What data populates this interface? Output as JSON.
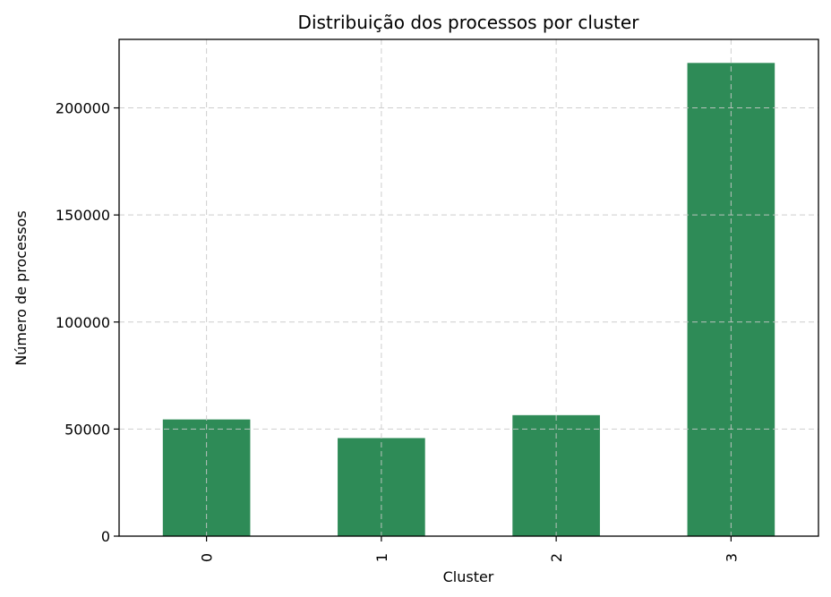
{
  "chart_data": {
    "type": "bar",
    "title": "Distribuição dos processos por cluster",
    "xlabel": "Cluster",
    "ylabel": "Número de processos",
    "categories": [
      "0",
      "1",
      "2",
      "3"
    ],
    "values": [
      54500,
      45800,
      56500,
      221000
    ],
    "ylim": [
      0,
      232000
    ],
    "yticks": [
      0,
      50000,
      100000,
      150000,
      200000
    ],
    "ytick_labels": [
      "0",
      "50000",
      "100000",
      "150000",
      "200000"
    ],
    "grid": true,
    "legend": false,
    "bar_color": "#2e8b57"
  }
}
